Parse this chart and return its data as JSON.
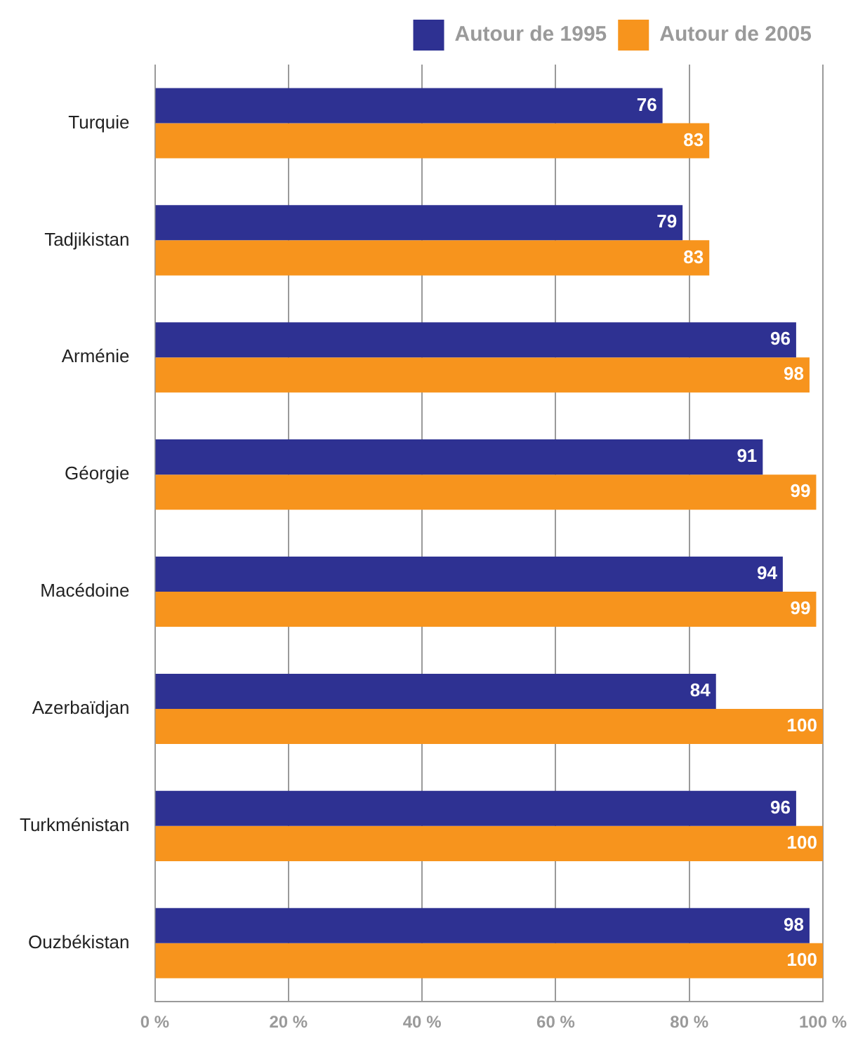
{
  "chart_data": {
    "type": "bar",
    "orientation": "horizontal",
    "categories": [
      "Turquie",
      "Tadjikistan",
      "Arménie",
      "Géorgie",
      "Macédoine",
      "Azerbaïdjan",
      "Turkménistan",
      "Ouzbékistan"
    ],
    "series": [
      {
        "name": "Autour de 1995",
        "color": "#2e3192",
        "values": [
          76,
          79,
          96,
          91,
          94,
          84,
          96,
          98
        ]
      },
      {
        "name": "Autour de 2005",
        "color": "#f7941d",
        "values": [
          83,
          83,
          98,
          99,
          99,
          100,
          100,
          100
        ]
      }
    ],
    "xlim": [
      0,
      100
    ],
    "xticks": [
      {
        "value": 0,
        "label": "0 %"
      },
      {
        "value": 20,
        "label": "20 %"
      },
      {
        "value": 40,
        "label": "40 %"
      },
      {
        "value": 60,
        "label": "60 %"
      },
      {
        "value": 80,
        "label": "80 %"
      },
      {
        "value": 100,
        "label": "100 %"
      }
    ],
    "grid": "x",
    "legend": "top right",
    "data_labels": true
  }
}
